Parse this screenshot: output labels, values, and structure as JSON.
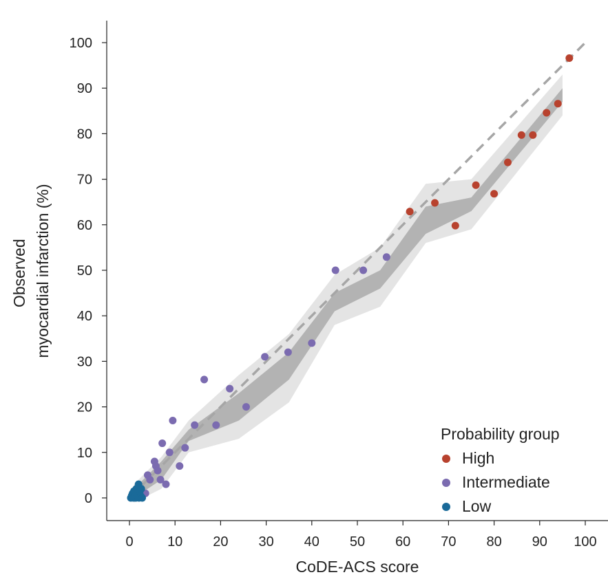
{
  "chart_data": {
    "type": "scatter",
    "xlabel": "CoDE-ACS score",
    "ylabel": [
      "Observed",
      "myocardial infarction (%)"
    ],
    "xlim": [
      -4,
      105
    ],
    "ylim": [
      -5,
      105
    ],
    "xticks": [
      0,
      10,
      20,
      30,
      40,
      50,
      60,
      70,
      80,
      90,
      100
    ],
    "yticks": [
      0,
      10,
      20,
      30,
      40,
      50,
      60,
      70,
      80,
      90,
      100
    ],
    "grid": false,
    "reference_line": {
      "style": "dashed",
      "color": "#a6a6a6",
      "x": [
        0,
        100
      ],
      "y": [
        0,
        100
      ]
    },
    "bands": {
      "inner": {
        "color": "#b3b3b3",
        "x": [
          1,
          7,
          13,
          24,
          35,
          45,
          55,
          65,
          75,
          95
        ],
        "upper": [
          2,
          8,
          15,
          23,
          32,
          45,
          50,
          64,
          66,
          90
        ],
        "lower": [
          0,
          4,
          12.5,
          17,
          26,
          41,
          46,
          58,
          63,
          87
        ]
      },
      "outer": {
        "color": "#e4e4e4",
        "x": [
          1,
          7,
          13,
          24,
          35,
          45,
          55,
          65,
          75,
          95
        ],
        "upper": [
          3,
          9,
          17,
          27,
          36,
          49,
          55,
          69,
          70,
          93
        ],
        "lower": [
          -1,
          2,
          10,
          13,
          21,
          38,
          42,
          56,
          59,
          84
        ]
      }
    },
    "series": [
      {
        "name": "High",
        "color": "#b8422e",
        "points": [
          [
            61.5,
            62.9
          ],
          [
            67,
            64.8
          ],
          [
            71.5,
            59.8
          ],
          [
            76,
            68.7
          ],
          [
            80,
            66.8
          ],
          [
            83,
            73.7
          ],
          [
            86,
            79.7
          ],
          [
            88.5,
            79.7
          ],
          [
            91.5,
            84.6
          ],
          [
            94,
            86.6
          ],
          [
            96.5,
            96.6
          ]
        ]
      },
      {
        "name": "Intermediate",
        "color": "#7b6bb0",
        "points": [
          [
            3.5,
            1
          ],
          [
            4,
            5
          ],
          [
            4.5,
            4
          ],
          [
            5.5,
            8
          ],
          [
            5.8,
            7
          ],
          [
            6.2,
            6
          ],
          [
            6.8,
            4
          ],
          [
            7.2,
            12
          ],
          [
            8,
            3
          ],
          [
            8.8,
            10
          ],
          [
            9.5,
            17
          ],
          [
            11,
            7
          ],
          [
            12.2,
            11
          ],
          [
            14.3,
            16
          ],
          [
            16.4,
            26
          ],
          [
            19,
            16
          ],
          [
            22,
            24
          ],
          [
            25.6,
            20
          ],
          [
            29.7,
            31
          ],
          [
            34.8,
            32
          ],
          [
            40,
            34
          ],
          [
            45.2,
            50
          ],
          [
            51.3,
            50
          ],
          [
            56.4,
            52.9
          ]
        ]
      },
      {
        "name": "Low",
        "color": "#1a6a99",
        "points": [
          [
            0.3,
            0
          ],
          [
            0.5,
            0.5
          ],
          [
            0.7,
            1
          ],
          [
            0.9,
            0
          ],
          [
            1,
            1.5
          ],
          [
            1.2,
            0.3
          ],
          [
            1.4,
            0
          ],
          [
            1.5,
            2
          ],
          [
            1.7,
            0.5
          ],
          [
            1.9,
            1
          ],
          [
            2,
            3
          ],
          [
            2.1,
            0
          ],
          [
            2.3,
            1.5
          ],
          [
            2.5,
            0.4
          ],
          [
            2.6,
            2
          ],
          [
            2.8,
            0
          ]
        ]
      }
    ],
    "legend": {
      "title": "Probability group",
      "position": "bottom-right"
    }
  }
}
